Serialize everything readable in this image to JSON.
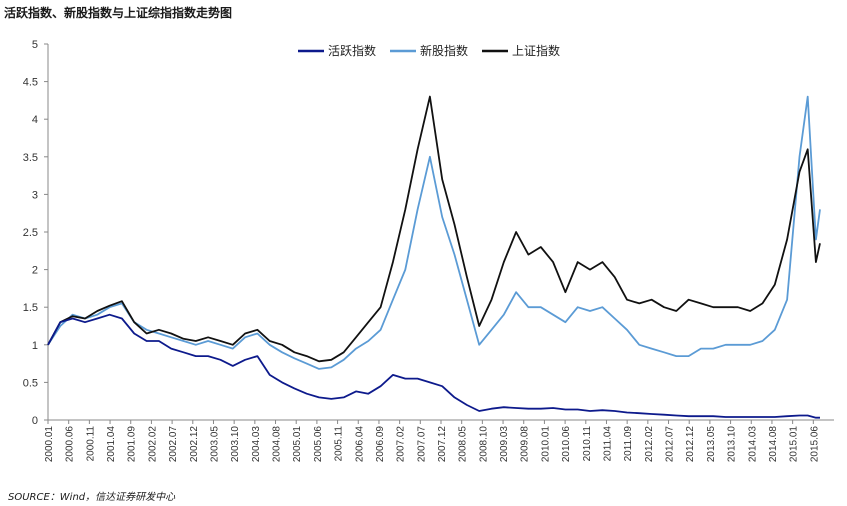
{
  "title": "活跃指数、新股指数与上证综指指数走势图",
  "source": "SOURCE：Wind，信达证券研发中心",
  "chart_data": {
    "type": "line",
    "title": "活跃指数、新股指数与上证综指指数走势图",
    "xlabel": "",
    "ylabel": "",
    "ylim": [
      0,
      5
    ],
    "yticks": [
      "0",
      "0.5",
      "1",
      "1.5",
      "2",
      "2.5",
      "3",
      "3.5",
      "4",
      "4.5",
      "5"
    ],
    "grid": false,
    "legend": "top-center",
    "x_tick_labels": [
      "2000.01",
      "2000.06",
      "2000.11",
      "2001.04",
      "2001.09",
      "2002.02",
      "2002.07",
      "2002.12",
      "2003.05",
      "2003.10",
      "2004.03",
      "2004.08",
      "2005.01",
      "2005.06",
      "2005.11",
      "2006.04",
      "2006.09",
      "2007.02",
      "2007.07",
      "2007.12",
      "2008.05",
      "2008.10",
      "2009.03",
      "2009.08",
      "2010.01",
      "2010.06",
      "2010.11",
      "2011.04",
      "2011.09",
      "2012.02",
      "2012.07",
      "2012.12",
      "2013.05",
      "2013.10",
      "2014.03",
      "2014.08",
      "2015.01",
      "2015.06"
    ],
    "x": [
      "2000.01",
      "2000.04",
      "2000.07",
      "2000.10",
      "2001.01",
      "2001.04",
      "2001.07",
      "2001.10",
      "2002.01",
      "2002.04",
      "2002.07",
      "2002.10",
      "2003.01",
      "2003.04",
      "2003.07",
      "2003.10",
      "2004.01",
      "2004.04",
      "2004.07",
      "2004.10",
      "2005.01",
      "2005.04",
      "2005.07",
      "2005.10",
      "2006.01",
      "2006.04",
      "2006.07",
      "2006.10",
      "2007.01",
      "2007.04",
      "2007.07",
      "2007.10",
      "2008.01",
      "2008.04",
      "2008.07",
      "2008.10",
      "2009.01",
      "2009.04",
      "2009.07",
      "2009.10",
      "2010.01",
      "2010.04",
      "2010.07",
      "2010.10",
      "2011.01",
      "2011.04",
      "2011.07",
      "2011.10",
      "2012.01",
      "2012.04",
      "2012.07",
      "2012.10",
      "2013.01",
      "2013.04",
      "2013.07",
      "2013.10",
      "2014.01",
      "2014.04",
      "2014.07",
      "2014.10",
      "2015.01",
      "2015.04",
      "2015.06",
      "2015.08",
      "2015.09"
    ],
    "series": [
      {
        "name": "活跃指数",
        "color": "#0d1a8c",
        "values": [
          1.0,
          1.3,
          1.35,
          1.3,
          1.35,
          1.4,
          1.35,
          1.15,
          1.05,
          1.05,
          0.95,
          0.9,
          0.85,
          0.85,
          0.8,
          0.72,
          0.8,
          0.85,
          0.6,
          0.5,
          0.42,
          0.35,
          0.3,
          0.28,
          0.3,
          0.38,
          0.35,
          0.45,
          0.6,
          0.55,
          0.55,
          0.5,
          0.45,
          0.3,
          0.2,
          0.12,
          0.15,
          0.17,
          0.16,
          0.15,
          0.15,
          0.16,
          0.14,
          0.14,
          0.12,
          0.13,
          0.12,
          0.1,
          0.09,
          0.08,
          0.07,
          0.06,
          0.05,
          0.05,
          0.05,
          0.04,
          0.04,
          0.04,
          0.04,
          0.04,
          0.05,
          0.06,
          0.06,
          0.03,
          0.03
        ]
      },
      {
        "name": "新股指数",
        "color": "#5b9bd5",
        "values": [
          1.0,
          1.25,
          1.4,
          1.35,
          1.4,
          1.5,
          1.55,
          1.3,
          1.2,
          1.15,
          1.1,
          1.05,
          1.0,
          1.05,
          1.0,
          0.95,
          1.1,
          1.15,
          1.0,
          0.9,
          0.82,
          0.75,
          0.68,
          0.7,
          0.8,
          0.95,
          1.05,
          1.2,
          1.6,
          2.0,
          2.8,
          3.5,
          2.7,
          2.2,
          1.6,
          1.0,
          1.2,
          1.4,
          1.7,
          1.5,
          1.5,
          1.4,
          1.3,
          1.5,
          1.45,
          1.5,
          1.35,
          1.2,
          1.0,
          0.95,
          0.9,
          0.85,
          0.85,
          0.95,
          0.95,
          1.0,
          1.0,
          1.0,
          1.05,
          1.2,
          1.6,
          3.5,
          4.3,
          2.4,
          2.8
        ]
      },
      {
        "name": "上证指数",
        "color": "#111111",
        "values": [
          1.0,
          1.3,
          1.38,
          1.35,
          1.45,
          1.52,
          1.58,
          1.3,
          1.15,
          1.2,
          1.15,
          1.08,
          1.05,
          1.1,
          1.05,
          1.0,
          1.15,
          1.2,
          1.05,
          1.0,
          0.9,
          0.85,
          0.78,
          0.8,
          0.9,
          1.1,
          1.3,
          1.5,
          2.1,
          2.8,
          3.6,
          4.3,
          3.2,
          2.6,
          1.9,
          1.25,
          1.6,
          2.1,
          2.5,
          2.2,
          2.3,
          2.1,
          1.7,
          2.1,
          2.0,
          2.1,
          1.9,
          1.6,
          1.55,
          1.6,
          1.5,
          1.45,
          1.6,
          1.55,
          1.5,
          1.5,
          1.5,
          1.45,
          1.55,
          1.8,
          2.4,
          3.3,
          3.6,
          2.1,
          2.35
        ]
      }
    ]
  }
}
